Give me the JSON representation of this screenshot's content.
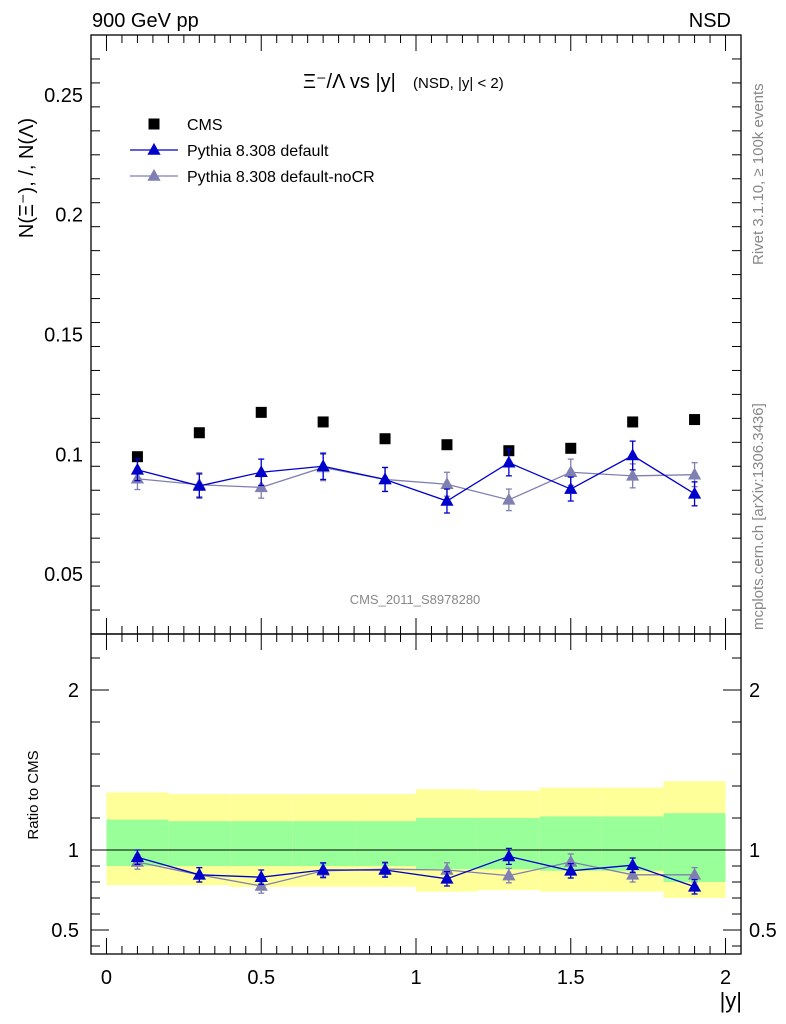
{
  "header": {
    "left": "900 GeV pp",
    "right": "NSD"
  },
  "side_labels": {
    "top": "Rivet 3.1.10, ≥ 100k events",
    "bottom": "mcplots.cern.ch [arXiv:1306.3436]"
  },
  "watermark": "CMS_2011_S8978280",
  "colors": {
    "cms": "#000000",
    "default": "#0000cc",
    "nocr": "#7f7fb2",
    "band_inner": "#99ff99",
    "band_outer": "#ffff99"
  },
  "chart_data": [
    {
      "type": "scatter",
      "title": "Ξ⁻/Λ vs |y|",
      "subtitle": "(NSD, |y| < 2)",
      "ylabel": "N(Ξ⁻), /, N(Λ)",
      "xlabel": "",
      "xlim": [
        -0.05,
        2.05
      ],
      "ylim": [
        0.025,
        0.275
      ],
      "yticks": [
        0.05,
        0.1,
        0.15,
        0.2,
        0.25
      ],
      "ytick_labels": [
        "0.05",
        "0.1",
        "0.15",
        "0.2",
        "0.25"
      ],
      "legend_position": "top-left",
      "x": [
        0.1,
        0.3,
        0.5,
        0.7,
        0.9,
        1.1,
        1.3,
        1.5,
        1.7,
        1.9
      ],
      "series": [
        {
          "name": "CMS",
          "marker": "square",
          "values": [
            0.099,
            0.109,
            0.1175,
            0.1135,
            0.1065,
            0.104,
            0.1015,
            0.1025,
            0.1135,
            0.1145
          ]
        },
        {
          "name": "Pythia 8.308 default",
          "marker": "triangle",
          "values": [
            0.0935,
            0.0868,
            0.0925,
            0.095,
            0.0895,
            0.0805,
            0.0965,
            0.0855,
            0.0995,
            0.0835
          ],
          "errors": [
            0.0045,
            0.005,
            0.0055,
            0.0055,
            0.005,
            0.005,
            0.0055,
            0.005,
            0.006,
            0.005
          ]
        },
        {
          "name": "Pythia 8.308 default-noCR",
          "marker": "triangle",
          "values": [
            0.0898,
            0.0873,
            0.0862,
            0.0945,
            0.0895,
            0.0875,
            0.081,
            0.0925,
            0.091,
            0.0915
          ],
          "errors": [
            0.0045,
            0.005,
            0.0045,
            0.0055,
            0.005,
            0.005,
            0.0045,
            0.0055,
            0.005,
            0.005
          ]
        }
      ]
    },
    {
      "type": "scatter",
      "title": "",
      "xlabel": "|y|",
      "ylabel": "Ratio to CMS",
      "xlim": [
        -0.05,
        2.05
      ],
      "ylim": [
        0.35,
        2.35
      ],
      "yticks": [
        0.5,
        1,
        2
      ],
      "ytick_labels": [
        "0.5",
        "1",
        "2"
      ],
      "xticks": [
        0,
        0.5,
        1,
        1.5,
        2
      ],
      "xtick_labels": [
        "0",
        "0.5",
        "1",
        "1.5",
        "2"
      ],
      "x": [
        0.1,
        0.3,
        0.5,
        0.7,
        0.9,
        1.1,
        1.3,
        1.5,
        1.7,
        1.9
      ],
      "band_edges": [
        0,
        0.2,
        0.4,
        0.6,
        0.8,
        1.0,
        1.2,
        1.4,
        1.6,
        1.8,
        2.0
      ],
      "band_inner_low": [
        0.9,
        0.9,
        0.9,
        0.9,
        0.9,
        0.88,
        0.88,
        0.87,
        0.87,
        0.8
      ],
      "band_inner_high": [
        1.19,
        1.18,
        1.18,
        1.18,
        1.18,
        1.2,
        1.2,
        1.21,
        1.21,
        1.23
      ],
      "band_outer_low": [
        0.78,
        0.78,
        0.77,
        0.77,
        0.77,
        0.74,
        0.75,
        0.74,
        0.74,
        0.7
      ],
      "band_outer_high": [
        1.36,
        1.35,
        1.35,
        1.35,
        1.35,
        1.38,
        1.37,
        1.39,
        1.39,
        1.43
      ],
      "series": [
        {
          "name": "Pythia 8.308 default",
          "values": [
            0.955,
            0.845,
            0.83,
            0.875,
            0.875,
            0.82,
            0.96,
            0.87,
            0.905,
            0.77
          ],
          "errors": [
            0.045,
            0.045,
            0.045,
            0.045,
            0.045,
            0.045,
            0.05,
            0.045,
            0.045,
            0.045
          ]
        },
        {
          "name": "Pythia 8.308 default-noCR",
          "values": [
            0.925,
            0.845,
            0.775,
            0.87,
            0.88,
            0.875,
            0.84,
            0.925,
            0.845,
            0.845
          ],
          "errors": [
            0.045,
            0.045,
            0.045,
            0.045,
            0.045,
            0.045,
            0.045,
            0.05,
            0.045,
            0.045
          ]
        }
      ]
    }
  ]
}
